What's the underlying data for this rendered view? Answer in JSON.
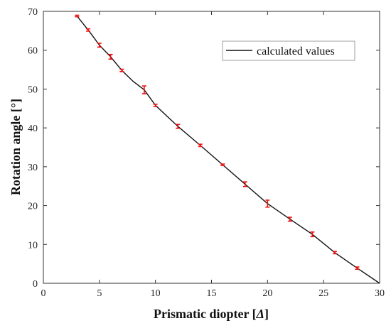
{
  "chart_data": {
    "type": "line",
    "xlabel_main": "Prismatic diopter [",
    "xlabel_symbol": "Δ",
    "xlabel_tail": "]",
    "ylabel": "Rotation angle [°]",
    "xlim": [
      0,
      30
    ],
    "ylim": [
      0,
      70
    ],
    "xticks": [
      "0",
      "5",
      "10",
      "15",
      "20",
      "25",
      "30"
    ],
    "yticks": [
      "0",
      "10",
      "20",
      "30",
      "40",
      "50",
      "60",
      "70"
    ],
    "grid": false,
    "legend_position": "top-right",
    "colors": {
      "line": "#111111",
      "error_bars": "#ee1111"
    },
    "series": [
      {
        "name": "calculated values",
        "x": [
          3,
          4,
          5,
          6,
          7,
          8,
          9,
          10,
          12,
          14,
          16,
          18,
          20,
          22,
          24,
          26,
          28,
          30
        ],
        "y": [
          68.8,
          65.2,
          61.3,
          58.3,
          54.8,
          52.0,
          49.8,
          45.8,
          40.4,
          35.5,
          30.5,
          25.5,
          20.5,
          16.5,
          12.6,
          7.9,
          3.9,
          0
        ]
      }
    ],
    "error_bars": {
      "x": [
        3,
        4,
        5,
        6,
        7,
        9,
        10,
        12,
        14,
        16,
        18,
        20,
        22,
        24,
        26,
        28
      ],
      "y": [
        68.8,
        65.2,
        61.3,
        58.3,
        54.8,
        49.8,
        45.8,
        40.4,
        35.5,
        30.5,
        25.5,
        20.5,
        16.5,
        12.6,
        7.9,
        3.9
      ],
      "err": [
        0.2,
        0.3,
        0.5,
        0.6,
        0.3,
        1.0,
        0.3,
        0.5,
        0.3,
        0.2,
        0.6,
        0.9,
        0.5,
        0.6,
        0.3,
        0.3
      ]
    }
  }
}
